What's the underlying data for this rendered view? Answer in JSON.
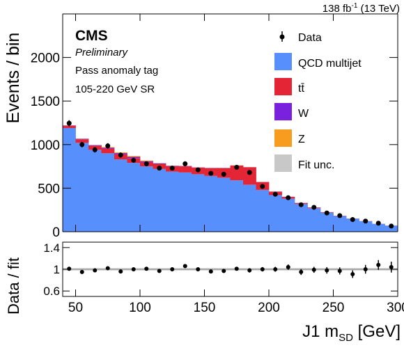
{
  "header": {
    "lumi_main": "138 fb",
    "lumi_sup": "-1",
    "lumi_tail": " (13 TeV)",
    "experiment": "CMS",
    "status": "Preliminary",
    "category_line1": "Pass anomaly tag",
    "category_line2": "105-220 GeV SR"
  },
  "legend": {
    "data": "Data",
    "qcd": "QCD multijet",
    "ttbar": "tt̄",
    "w": "W",
    "z": "Z",
    "unc": "Fit unc."
  },
  "colors": {
    "qcd": "#5790fc",
    "ttbar": "#e42536",
    "w": "#7a21dd",
    "z": "#f89c20",
    "unc": "#c8c8c8",
    "data": "#000000"
  },
  "chart_data": [
    {
      "type": "area",
      "panel": "main",
      "ylabel": "Events / bin",
      "xlim": [
        40,
        300
      ],
      "ylim": [
        0,
        2500
      ],
      "y_ticks": [
        0,
        500,
        1000,
        1500,
        2000
      ],
      "bin_edges": [
        40,
        50,
        60,
        70,
        80,
        90,
        100,
        110,
        120,
        130,
        140,
        150,
        160,
        170,
        180,
        190,
        200,
        210,
        220,
        230,
        240,
        250,
        260,
        270,
        280,
        290,
        300
      ],
      "series": [
        {
          "name": "QCD multijet",
          "values": [
            1190,
            1020,
            940,
            900,
            830,
            790,
            750,
            720,
            690,
            680,
            660,
            640,
            620,
            590,
            540,
            480,
            420,
            380,
            320,
            270,
            220,
            180,
            150,
            120,
            90,
            70
          ]
        },
        {
          "name": "tt̄",
          "values": [
            25,
            40,
            45,
            55,
            60,
            55,
            50,
            55,
            60,
            70,
            75,
            90,
            110,
            170,
            200,
            90,
            40,
            20,
            10,
            8,
            5,
            3,
            2,
            2,
            1,
            1
          ]
        },
        {
          "name": "W",
          "values": [
            5,
            6,
            8,
            10,
            12,
            14,
            10,
            8,
            6,
            4,
            3,
            2,
            2,
            1,
            1,
            1,
            1,
            1,
            1,
            1,
            0,
            0,
            0,
            0,
            0,
            0
          ]
        },
        {
          "name": "Z",
          "values": [
            2,
            3,
            4,
            6,
            8,
            10,
            7,
            5,
            3,
            2,
            1,
            1,
            1,
            1,
            1,
            1,
            0,
            0,
            0,
            0,
            0,
            0,
            0,
            0,
            0,
            0
          ]
        }
      ],
      "data": {
        "name": "Data",
        "x": [
          45,
          55,
          65,
          75,
          85,
          95,
          105,
          115,
          125,
          135,
          145,
          155,
          165,
          175,
          185,
          195,
          205,
          215,
          225,
          235,
          245,
          255,
          265,
          275,
          285,
          295
        ],
        "y": [
          1245,
          1000,
          940,
          985,
          880,
          820,
          780,
          730,
          730,
          780,
          710,
          670,
          660,
          740,
          680,
          520,
          430,
          390,
          310,
          280,
          215,
          185,
          140,
          122,
          98,
          65
        ]
      }
    },
    {
      "type": "scatter",
      "panel": "ratio",
      "xlabel": "J1 m_SD [GeV]",
      "ylabel": "Data / fit",
      "xlim": [
        40,
        300
      ],
      "ylim": [
        0.5,
        1.5
      ],
      "y_ticks": [
        0.6,
        1,
        1.4
      ],
      "x_ticks": [
        50,
        100,
        150,
        200,
        250,
        300
      ],
      "x": [
        45,
        55,
        65,
        75,
        85,
        95,
        105,
        115,
        125,
        135,
        145,
        155,
        165,
        175,
        185,
        195,
        205,
        215,
        225,
        235,
        245,
        255,
        265,
        275,
        285,
        295
      ],
      "y": [
        1.01,
        0.95,
        0.98,
        1.02,
        0.96,
        1.0,
        1.01,
        0.97,
        1.0,
        1.06,
        1.0,
        0.96,
        0.97,
        1.01,
        0.98,
        1.0,
        1.0,
        1.04,
        0.95,
        0.99,
        0.98,
        0.97,
        0.91,
        1.0,
        1.08,
        1.04
      ],
      "err": [
        0.03,
        0.03,
        0.03,
        0.03,
        0.03,
        0.03,
        0.035,
        0.035,
        0.035,
        0.035,
        0.035,
        0.035,
        0.035,
        0.035,
        0.04,
        0.04,
        0.045,
        0.05,
        0.055,
        0.055,
        0.06,
        0.065,
        0.07,
        0.08,
        0.09,
        0.1
      ]
    }
  ]
}
